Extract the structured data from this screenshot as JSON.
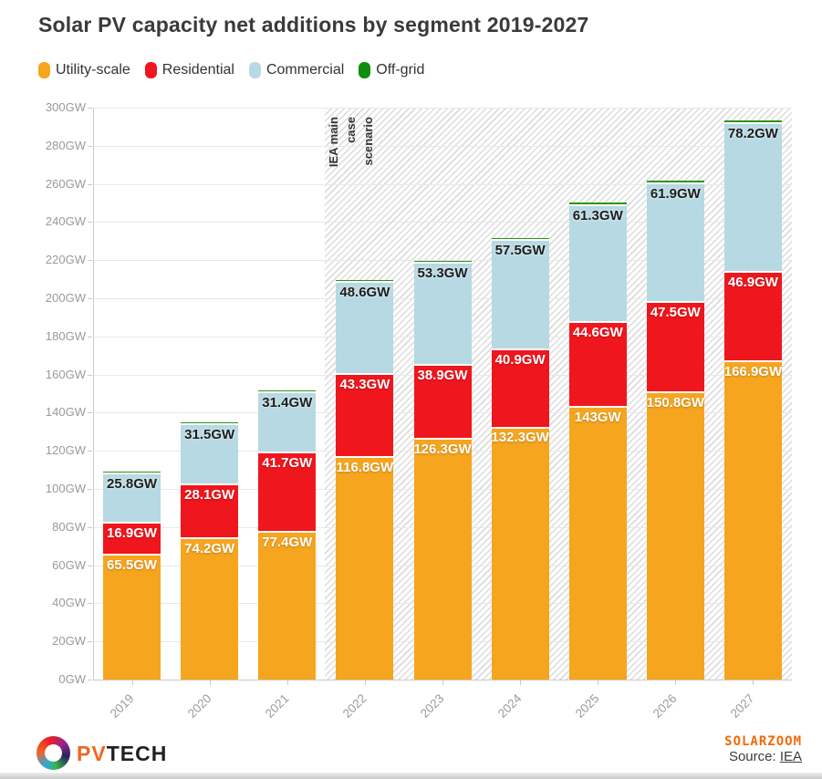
{
  "title": "Solar PV capacity net additions by segment 2019-2027",
  "legend": [
    {
      "label": "Utility-scale",
      "color": "#F6A51F"
    },
    {
      "label": "Residential",
      "color": "#F0161D"
    },
    {
      "label": "Commercial",
      "color": "#B7D9E3"
    },
    {
      "label": "Off-grid",
      "color": "#0C8E0C"
    }
  ],
  "chart_data": {
    "type": "bar",
    "stacked": true,
    "title": "Solar PV capacity net additions by segment 2019-2027",
    "unit": "GW",
    "ylim": [
      0,
      300
    ],
    "ytick_step": 20,
    "grid": true,
    "categories": [
      "2019",
      "2020",
      "2021",
      "2022",
      "2023",
      "2024",
      "2025",
      "2026",
      "2027"
    ],
    "series": [
      {
        "name": "Utility-scale",
        "color": "#F6A51F",
        "label_color": "#ffffff",
        "values": [
          65.5,
          74.2,
          77.4,
          116.8,
          126.3,
          132.3,
          143,
          150.8,
          166.9
        ],
        "labels": [
          "65.5GW",
          "74.2GW",
          "77.4GW",
          "116.8GW",
          "126.3GW",
          "132.3GW",
          "143GW",
          "150.8GW",
          "166.9GW"
        ]
      },
      {
        "name": "Residential",
        "color": "#F0161D",
        "label_color": "#ffffff",
        "values": [
          16.9,
          28.1,
          41.7,
          43.3,
          38.9,
          40.9,
          44.6,
          47.5,
          46.9
        ],
        "labels": [
          "16.9GW",
          "28.1GW",
          "41.7GW",
          "43.3GW",
          "38.9GW",
          "40.9GW",
          "44.6GW",
          "47.5GW",
          "46.9GW"
        ]
      },
      {
        "name": "Commercial",
        "color": "#B7D9E3",
        "label_color": "#1d1d1d",
        "values": [
          25.8,
          31.5,
          31.4,
          48.6,
          53.3,
          57.5,
          61.3,
          61.9,
          78.2
        ],
        "labels": [
          "25.8GW",
          "31.5GW",
          "31.4GW",
          "48.6GW",
          "53.3GW",
          "57.5GW",
          "61.3GW",
          "61.9GW",
          "78.2GW"
        ]
      },
      {
        "name": "Off-grid",
        "color": "#2E9418",
        "label_color": "#ffffff",
        "values": [
          0.9,
          0.9,
          1.0,
          1.0,
          1.0,
          1.1,
          1.2,
          1.3,
          1.5
        ],
        "labels": [
          "",
          "",
          "",
          "",
          "",
          "",
          "",
          "",
          ""
        ]
      }
    ],
    "forecast_start_index": 3,
    "annotation_text": "IEA main\ncase\nscenario",
    "legend_position": "top-left"
  },
  "footer": {
    "brand_pv": "PV",
    "brand_tech": "TECH",
    "watermark": "SOLARZOOM",
    "source_label": "Source: ",
    "source_link": "IEA"
  }
}
